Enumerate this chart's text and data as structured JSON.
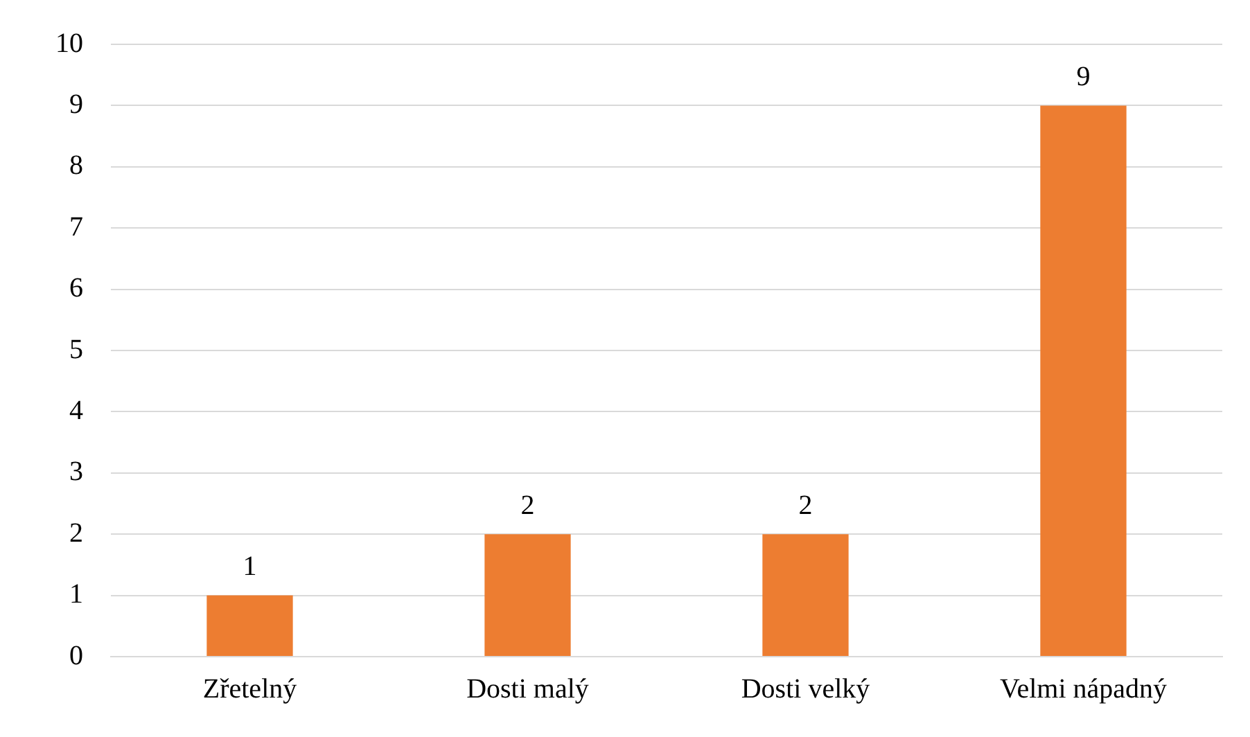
{
  "chart_data": {
    "type": "bar",
    "categories": [
      "Zřetelný",
      "Dosti malý",
      "Dosti velký",
      "Velmi nápadný"
    ],
    "values": [
      1,
      2,
      2,
      9
    ],
    "color": "#ed7d31",
    "ylim": [
      0,
      10
    ],
    "yticks": [
      0,
      1,
      2,
      3,
      4,
      5,
      6,
      7,
      8,
      9,
      10
    ],
    "grid": "y",
    "data_labels": true
  }
}
